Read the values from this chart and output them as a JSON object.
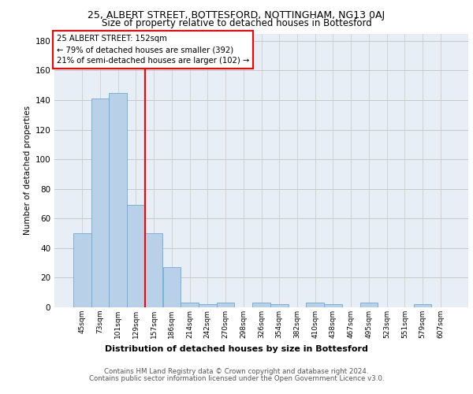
{
  "title1": "25, ALBERT STREET, BOTTESFORD, NOTTINGHAM, NG13 0AJ",
  "title2": "Size of property relative to detached houses in Bottesford",
  "xlabel": "Distribution of detached houses by size in Bottesford",
  "ylabel": "Number of detached properties",
  "bar_color": "#b8d0e8",
  "bar_edge_color": "#6aaad4",
  "background_color": "#e8eef6",
  "grid_color": "#c8c8c8",
  "categories": [
    "45sqm",
    "73sqm",
    "101sqm",
    "129sqm",
    "157sqm",
    "186sqm",
    "214sqm",
    "242sqm",
    "270sqm",
    "298sqm",
    "326sqm",
    "354sqm",
    "382sqm",
    "410sqm",
    "438sqm",
    "467sqm",
    "495sqm",
    "523sqm",
    "551sqm",
    "579sqm",
    "607sqm"
  ],
  "values": [
    50,
    141,
    145,
    69,
    50,
    27,
    3,
    2,
    3,
    0,
    3,
    2,
    0,
    3,
    2,
    0,
    3,
    0,
    0,
    2,
    0
  ],
  "ylim": [
    0,
    185
  ],
  "yticks": [
    0,
    20,
    40,
    60,
    80,
    100,
    120,
    140,
    160,
    180
  ],
  "property_line_x": 3.5,
  "annotation_line1": "25 ALBERT STREET: 152sqm",
  "annotation_line2": "← 79% of detached houses are smaller (392)",
  "annotation_line3": "21% of semi-detached houses are larger (102) →",
  "footer1": "Contains HM Land Registry data © Crown copyright and database right 2024.",
  "footer2": "Contains public sector information licensed under the Open Government Licence v3.0."
}
